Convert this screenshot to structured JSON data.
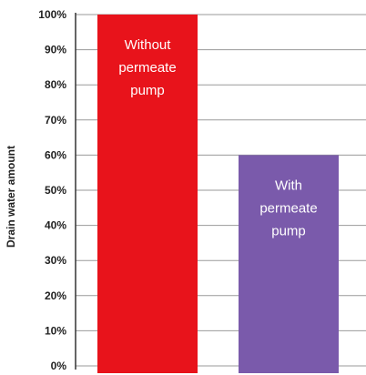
{
  "chart_data": {
    "type": "bar",
    "categories": [
      "Without permeate pump",
      "With permeate pump"
    ],
    "values": [
      100,
      60
    ],
    "bar_labels": [
      [
        "Without",
        "permeate",
        "pump"
      ],
      [
        "With",
        "permeate",
        "pump"
      ]
    ],
    "colors": [
      "#e8131b",
      "#7a5aab"
    ],
    "xlabel": "",
    "ylabel": "Drain water amount",
    "ylim": [
      0,
      100
    ],
    "yticks": [
      0,
      10,
      20,
      30,
      40,
      50,
      60,
      70,
      80,
      90,
      100
    ],
    "ytick_labels": [
      "0%",
      "10%",
      "20%",
      "30%",
      "40%",
      "50%",
      "60%",
      "70%",
      "80%",
      "90%",
      "100%"
    ],
    "grid": true,
    "legend": "none"
  }
}
